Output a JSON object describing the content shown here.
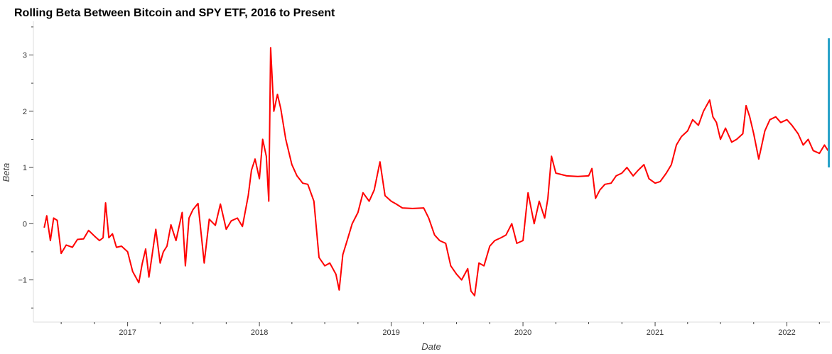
{
  "chart_data": {
    "type": "line",
    "title": "Rolling Beta Between Bitcoin and SPY ETF, 2016 to Present",
    "xlabel": "Date",
    "ylabel": "Beta",
    "x_tick_labels": [
      "2017",
      "2018",
      "2019",
      "2020",
      "2021",
      "2022"
    ],
    "y_tick_labels": [
      "−1",
      "0",
      "1",
      "2",
      "3"
    ],
    "xlim": [
      "2016-04-15",
      "2022-04-30"
    ],
    "ylim": [
      -1.75,
      3.6
    ],
    "grid": false,
    "line_color": "#ff0000",
    "series": [
      {
        "x": [
          "2016-05-15",
          "2016-05-22",
          "2016-06-01",
          "2016-06-10",
          "2016-06-20",
          "2016-07-01",
          "2016-07-15",
          "2016-08-01",
          "2016-08-15",
          "2016-09-01",
          "2016-09-15",
          "2016-10-01",
          "2016-10-15",
          "2016-10-25",
          "2016-11-01",
          "2016-11-10",
          "2016-11-20",
          "2016-12-01",
          "2016-12-15",
          "2017-01-01",
          "2017-01-15",
          "2017-02-01",
          "2017-02-10",
          "2017-02-20",
          "2017-03-01",
          "2017-03-10",
          "2017-03-20",
          "2017-04-01",
          "2017-04-10",
          "2017-04-20",
          "2017-05-01",
          "2017-05-15",
          "2017-06-01",
          "2017-06-10",
          "2017-06-20",
          "2017-07-01",
          "2017-07-15",
          "2017-08-01",
          "2017-08-15",
          "2017-09-01",
          "2017-09-15",
          "2017-10-01",
          "2017-10-15",
          "2017-11-01",
          "2017-11-15",
          "2017-12-01",
          "2017-12-10",
          "2017-12-20",
          "2018-01-01",
          "2018-01-10",
          "2018-01-20",
          "2018-01-27",
          "2018-02-01",
          "2018-02-10",
          "2018-02-20",
          "2018-03-01",
          "2018-03-15",
          "2018-04-01",
          "2018-04-15",
          "2018-05-01",
          "2018-05-15",
          "2018-06-01",
          "2018-06-15",
          "2018-07-01",
          "2018-07-15",
          "2018-08-01",
          "2018-08-10",
          "2018-08-20",
          "2018-09-01",
          "2018-09-15",
          "2018-10-01",
          "2018-10-15",
          "2018-11-01",
          "2018-11-15",
          "2018-12-01",
          "2018-12-15",
          "2019-01-01",
          "2019-01-15",
          "2019-02-01",
          "2019-03-01",
          "2019-04-01",
          "2019-04-15",
          "2019-05-01",
          "2019-05-15",
          "2019-06-01",
          "2019-06-15",
          "2019-07-01",
          "2019-07-15",
          "2019-08-01",
          "2019-08-10",
          "2019-08-20",
          "2019-09-01",
          "2019-09-15",
          "2019-10-01",
          "2019-10-15",
          "2019-11-01",
          "2019-11-15",
          "2019-12-01",
          "2019-12-15",
          "2020-01-01",
          "2020-01-15",
          "2020-02-01",
          "2020-02-15",
          "2020-03-01",
          "2020-03-10",
          "2020-03-20",
          "2020-04-01",
          "2020-05-01",
          "2020-06-01",
          "2020-07-01",
          "2020-07-10",
          "2020-07-20",
          "2020-08-01",
          "2020-08-15",
          "2020-09-01",
          "2020-09-15",
          "2020-10-01",
          "2020-10-15",
          "2020-11-01",
          "2020-11-15",
          "2020-12-01",
          "2020-12-15",
          "2021-01-01",
          "2021-01-15",
          "2021-02-01",
          "2021-02-15",
          "2021-03-01",
          "2021-03-15",
          "2021-04-01",
          "2021-04-15",
          "2021-05-01",
          "2021-05-15",
          "2021-06-01",
          "2021-06-10",
          "2021-06-20",
          "2021-07-01",
          "2021-07-15",
          "2021-08-01",
          "2021-08-15",
          "2021-09-01",
          "2021-09-10",
          "2021-09-20",
          "2021-10-01",
          "2021-10-15",
          "2021-11-01",
          "2021-11-15",
          "2021-12-01",
          "2021-12-15",
          "2022-01-01",
          "2022-01-15",
          "2022-02-01",
          "2022-02-15",
          "2022-03-01",
          "2022-03-15",
          "2022-04-01",
          "2022-04-15",
          "2022-04-25"
        ],
        "y": [
          -0.07,
          0.14,
          -0.3,
          0.1,
          0.06,
          -0.53,
          -0.38,
          -0.42,
          -0.28,
          -0.27,
          -0.12,
          -0.22,
          -0.3,
          -0.25,
          0.37,
          -0.25,
          -0.18,
          -0.42,
          -0.4,
          -0.5,
          -0.85,
          -1.05,
          -0.72,
          -0.45,
          -0.95,
          -0.55,
          -0.1,
          -0.7,
          -0.5,
          -0.4,
          -0.02,
          -0.3,
          0.2,
          -0.75,
          0.1,
          0.25,
          0.36,
          -0.7,
          0.08,
          -0.03,
          0.35,
          -0.1,
          0.05,
          0.1,
          -0.05,
          0.5,
          0.95,
          1.15,
          0.8,
          1.5,
          1.2,
          0.4,
          3.13,
          2.0,
          2.3,
          2.05,
          1.5,
          1.05,
          0.85,
          0.72,
          0.7,
          0.4,
          -0.6,
          -0.75,
          -0.7,
          -0.9,
          -1.18,
          -0.55,
          -0.3,
          0.0,
          0.2,
          0.55,
          0.4,
          0.6,
          1.1,
          0.5,
          0.4,
          0.35,
          0.28,
          0.27,
          0.28,
          0.1,
          -0.2,
          -0.3,
          -0.35,
          -0.75,
          -0.9,
          -1.0,
          -0.8,
          -1.2,
          -1.28,
          -0.7,
          -0.75,
          -0.4,
          -0.3,
          -0.25,
          -0.2,
          0.0,
          -0.35,
          -0.3,
          0.55,
          0.0,
          0.4,
          0.1,
          0.45,
          1.2,
          0.9,
          0.85,
          0.84,
          0.85,
          0.98,
          0.45,
          0.6,
          0.7,
          0.72,
          0.85,
          0.9,
          1.0,
          0.85,
          0.95,
          1.05,
          0.8,
          0.72,
          0.75,
          0.9,
          1.05,
          1.4,
          1.55,
          1.65,
          1.85,
          1.75,
          2.0,
          2.2,
          1.9,
          1.8,
          1.5,
          1.7,
          1.45,
          1.5,
          1.6,
          2.1,
          1.9,
          1.6,
          1.15,
          1.65,
          1.85,
          1.9,
          1.8,
          1.85,
          1.75,
          1.6,
          1.4,
          1.5,
          1.3,
          1.25,
          1.4,
          1.3
        ]
      }
    ]
  }
}
